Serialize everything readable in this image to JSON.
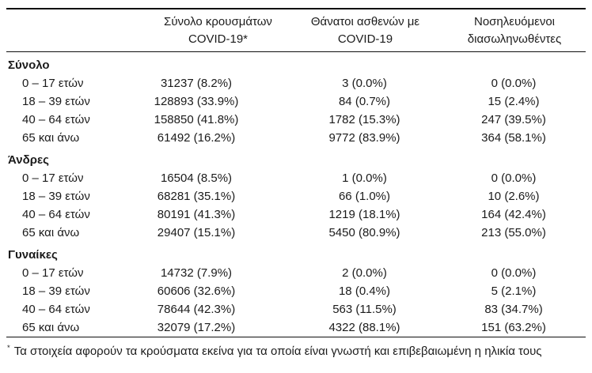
{
  "colors": {
    "background": "#ffffff",
    "text": "#1b1b1b",
    "rule": "#0e0e0e"
  },
  "table": {
    "headers": [
      {
        "line1": "Σύνολο κρουσμάτων",
        "line2": "COVID-19*"
      },
      {
        "line1": "Θάνατοι ασθενών με",
        "line2": "COVID-19"
      },
      {
        "line1": "Νοσηλευόμενοι",
        "line2": "διασωληνωθέντες"
      }
    ],
    "sections": [
      {
        "label": "Σύνολο",
        "rows": [
          {
            "label": "0 – 17 ετών",
            "cases": "31237 (8.2%)",
            "deaths": "3 (0.0%)",
            "intubated": "0 (0.0%)"
          },
          {
            "label": "18 – 39 ετών",
            "cases": "128893 (33.9%)",
            "deaths": "84 (0.7%)",
            "intubated": "15 (2.4%)"
          },
          {
            "label": "40 – 64 ετών",
            "cases": "158850 (41.8%)",
            "deaths": "1782 (15.3%)",
            "intubated": "247 (39.5%)"
          },
          {
            "label": "65 και άνω",
            "cases": "61492 (16.2%)",
            "deaths": "9772 (83.9%)",
            "intubated": "364 (58.1%)"
          }
        ]
      },
      {
        "label": "Άνδρες",
        "rows": [
          {
            "label": "0 – 17 ετών",
            "cases": "16504 (8.5%)",
            "deaths": "1 (0.0%)",
            "intubated": "0 (0.0%)"
          },
          {
            "label": "18 – 39 ετών",
            "cases": "68281 (35.1%)",
            "deaths": "66 (1.0%)",
            "intubated": "10 (2.6%)"
          },
          {
            "label": "40 – 64 ετών",
            "cases": "80191 (41.3%)",
            "deaths": "1219 (18.1%)",
            "intubated": "164 (42.4%)"
          },
          {
            "label": "65 και άνω",
            "cases": "29407 (15.1%)",
            "deaths": "5450 (80.9%)",
            "intubated": "213 (55.0%)"
          }
        ]
      },
      {
        "label": "Γυναίκες",
        "rows": [
          {
            "label": "0 – 17 ετών",
            "cases": "14732 (7.9%)",
            "deaths": "2 (0.0%)",
            "intubated": "0 (0.0%)"
          },
          {
            "label": "18 – 39 ετών",
            "cases": "60606 (32.6%)",
            "deaths": "18 (0.4%)",
            "intubated": "5 (2.1%)"
          },
          {
            "label": "40 – 64 ετών",
            "cases": "78644 (42.3%)",
            "deaths": "563 (11.5%)",
            "intubated": "83 (34.7%)"
          },
          {
            "label": "65 και άνω",
            "cases": "32079 (17.2%)",
            "deaths": "4322 (88.1%)",
            "intubated": "151 (63.2%)"
          }
        ]
      }
    ],
    "footnote": {
      "marker": "*",
      "text": "Τα στοιχεία αφορούν τα κρούσματα εκείνα για τα οποία είναι γνωστή και επιβεβαιωμένη η ηλικία τους"
    }
  }
}
